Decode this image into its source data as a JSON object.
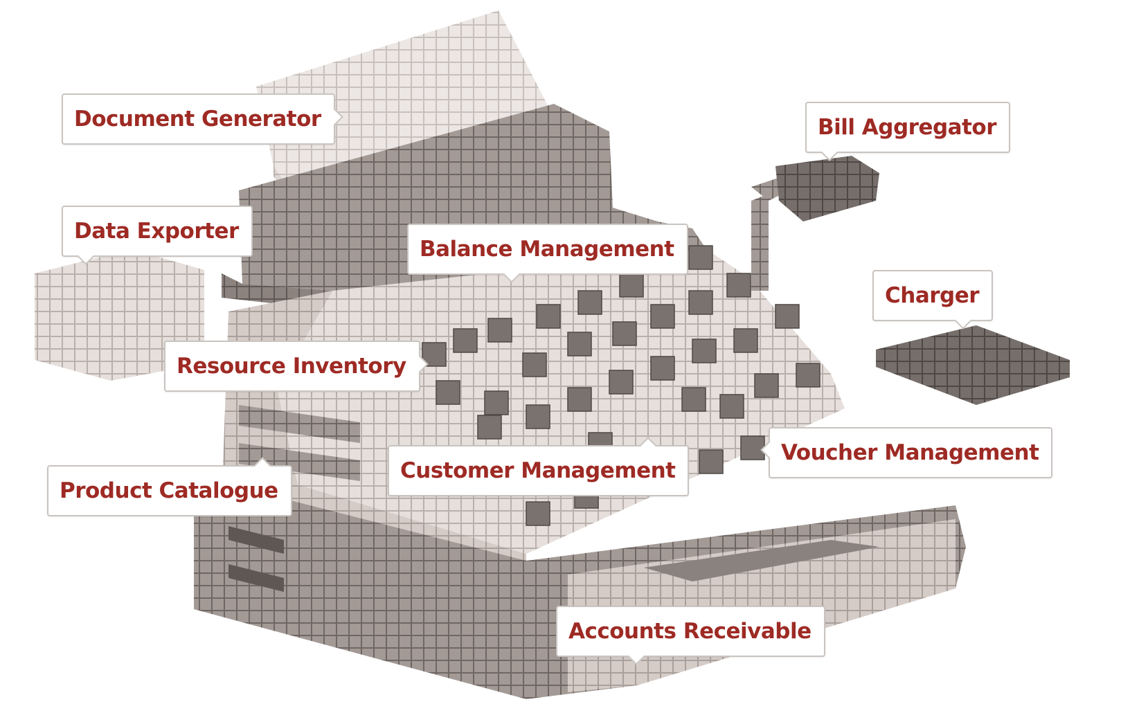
{
  "colors": {
    "label_text": "#9e2a24",
    "label_border": "#c9c4c0",
    "block_light": "#ddd5d1",
    "block_mid": "#9a928e",
    "block_dark": "#6e6662"
  },
  "labels": {
    "document_generator": "Document Generator",
    "bill_aggregator": "Bill Aggregator",
    "data_exporter": "Data Exporter",
    "balance_management": "Balance Management",
    "charger": "Charger",
    "resource_inventory": "Resource Inventory",
    "voucher_management": "Voucher Management",
    "customer_management": "Customer Management",
    "product_catalogue": "Product Catalogue",
    "accounts_receivable": "Accounts Receivable"
  }
}
